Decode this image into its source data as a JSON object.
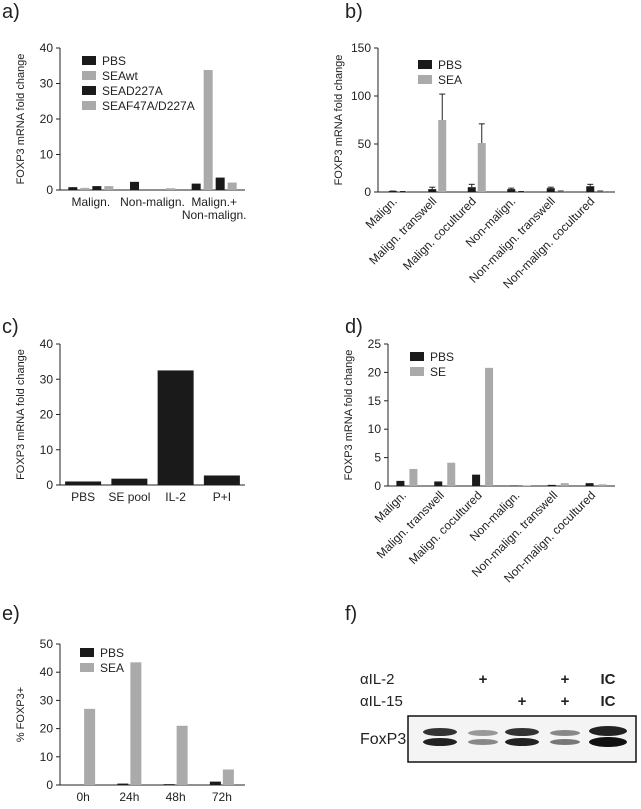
{
  "chart_data": [
    {
      "type": "bar",
      "panel": "a)",
      "y_label": "FOXP3 mRNA fold change",
      "categories": [
        "Malign.",
        "Non-malign.",
        "Malign.+\nNon-malign."
      ],
      "series": [
        {
          "name": "PBS",
          "color": "#1a1a1a",
          "values": [
            0.8,
            2.3,
            1.8
          ]
        },
        {
          "name": "SEAwt",
          "color": "#aaaaaa",
          "values": [
            0.6,
            0,
            33.8
          ]
        },
        {
          "name": "SEAD227A",
          "color": "#1a1a1a",
          "values": [
            1.1,
            0,
            3.5
          ]
        },
        {
          "name": "SEAF47A/D227A",
          "color": "#aaaaaa",
          "values": [
            1.1,
            0.5,
            2.1
          ]
        }
      ],
      "ylim": [
        0,
        40
      ],
      "yticks": [
        0,
        10,
        20,
        30,
        40
      ],
      "legend": "upper left"
    },
    {
      "type": "bar",
      "panel": "b)",
      "y_label": "FOXP3 mRNA fold change",
      "categories": [
        "Malign.",
        "Malign. transwell",
        "Malign. cocultured",
        "Non-malign.",
        "Non-malign. transwell",
        "Non-malign. cocultured"
      ],
      "series": [
        {
          "name": "PBS",
          "color": "#1a1a1a",
          "values": [
            1,
            3,
            5,
            3,
            4,
            6
          ],
          "errors": [
            0,
            2,
            3,
            1,
            1,
            2
          ]
        },
        {
          "name": "SEA",
          "color": "#aaaaaa",
          "values": [
            0.5,
            75,
            51,
            0.5,
            1,
            1
          ],
          "errors": [
            0,
            27,
            20,
            0,
            0,
            0
          ]
        }
      ],
      "ylim": [
        0,
        150
      ],
      "yticks": [
        0,
        50,
        100,
        150
      ],
      "legend": "upper left"
    },
    {
      "type": "bar",
      "panel": "c)",
      "y_label": "FOXP3 mRNA fold change",
      "categories": [
        "PBS",
        "SE pool",
        "IL-2",
        "P+I"
      ],
      "values": [
        1,
        1.8,
        32.5,
        2.7
      ],
      "color": "#1a1a1a",
      "ylim": [
        0,
        40
      ],
      "yticks": [
        0,
        10,
        20,
        30,
        40
      ]
    },
    {
      "type": "bar",
      "panel": "d)",
      "y_label": "FOXP3 mRNA fold change",
      "categories": [
        "Malign.",
        "Malign. transwell",
        "Malign. cocultured",
        "Non-malign.",
        "Non-malign. transwell",
        "Non-malign. cocultured"
      ],
      "series": [
        {
          "name": "PBS",
          "color": "#1a1a1a",
          "values": [
            0.9,
            0.8,
            2,
            0.1,
            0.2,
            0.5
          ]
        },
        {
          "name": "SE",
          "color": "#aaaaaa",
          "values": [
            3,
            4.1,
            20.8,
            0.1,
            0.5,
            0.3
          ]
        }
      ],
      "ylim": [
        0,
        25
      ],
      "yticks": [
        0,
        5,
        10,
        15,
        20,
        25
      ],
      "legend": "upper left"
    },
    {
      "type": "bar",
      "panel": "e)",
      "y_label": "% FOXP3+",
      "categories": [
        "0h",
        "24h",
        "48h",
        "72h"
      ],
      "series": [
        {
          "name": "PBS",
          "color": "#1a1a1a",
          "values": [
            0,
            0.5,
            0.3,
            1.2
          ]
        },
        {
          "name": "SEA",
          "color": "#aaaaaa",
          "values": [
            27,
            43.5,
            21,
            5.5
          ]
        }
      ],
      "ylim": [
        0,
        50
      ],
      "yticks": [
        0,
        10,
        20,
        30,
        40,
        50
      ],
      "legend": "upper left"
    }
  ],
  "blot": {
    "panel": "f)",
    "band_label": "FoxP3",
    "rows": [
      {
        "label": "αIL-2",
        "marks": [
          null,
          "+",
          null,
          "+",
          "IC"
        ]
      },
      {
        "label": "αIL-15",
        "marks": [
          null,
          null,
          "+",
          "+",
          "IC"
        ]
      }
    ]
  }
}
